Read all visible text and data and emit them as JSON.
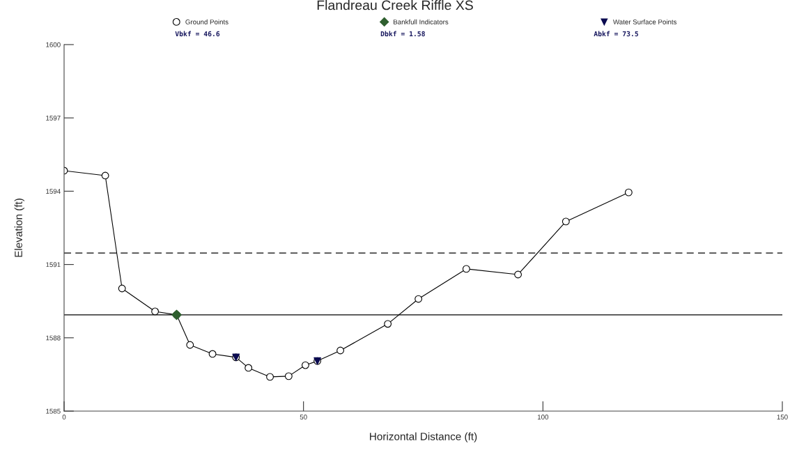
{
  "chart_data": {
    "type": "line",
    "title": "Flandreau Creek Riffle XS",
    "xlabel": "Horizontal Distance (ft)",
    "ylabel": "Elevation (ft)",
    "xlim": [
      0,
      150
    ],
    "xticks": [
      0,
      50,
      100,
      150
    ],
    "ylim": [
      1585,
      1600
    ],
    "yticks": [
      1585,
      1588,
      1591,
      1594,
      1597,
      1600
    ],
    "grid": false,
    "legend": "top",
    "series": [
      {
        "name": "Ground Points",
        "color": "#000000",
        "marker": "circle",
        "x": [
          0,
          8.6,
          12.1,
          19.0,
          23.5,
          26.3,
          31.0,
          35.9,
          38.5,
          43.0,
          46.9,
          50.4,
          52.9,
          57.7,
          67.6,
          74.0,
          84.0,
          94.8,
          104.8,
          117.9
        ],
        "values": [
          1594.84,
          1594.64,
          1590.02,
          1589.08,
          1588.94,
          1587.71,
          1587.34,
          1587.2,
          1586.77,
          1586.4,
          1586.43,
          1586.88,
          1587.05,
          1587.48,
          1588.57,
          1589.59,
          1590.82,
          1590.59,
          1592.76,
          1593.95
        ]
      },
      {
        "name": "Bankfull Indicators",
        "type": "scatter",
        "color": "#2f5f2f",
        "marker": "diamond",
        "x": [
          23.5
        ],
        "values": [
          1588.94
        ]
      },
      {
        "name": "Water Surface Points",
        "type": "scatter",
        "color": "#0a0a50",
        "marker": "triangle",
        "x": [
          35.9,
          52.9
        ],
        "values": [
          1587.2,
          1587.05
        ]
      }
    ],
    "ref_lines": [
      {
        "axis": "y",
        "value": 1591.47,
        "line_style": "dashed",
        "color": "#000000"
      },
      {
        "axis": "y",
        "value": 1588.94,
        "line_style": "solid",
        "color": "#000000"
      }
    ],
    "annotations": [
      "Vbkf = 46.6",
      "Dbkf = 1.58",
      "Abkf = 73.5"
    ]
  }
}
